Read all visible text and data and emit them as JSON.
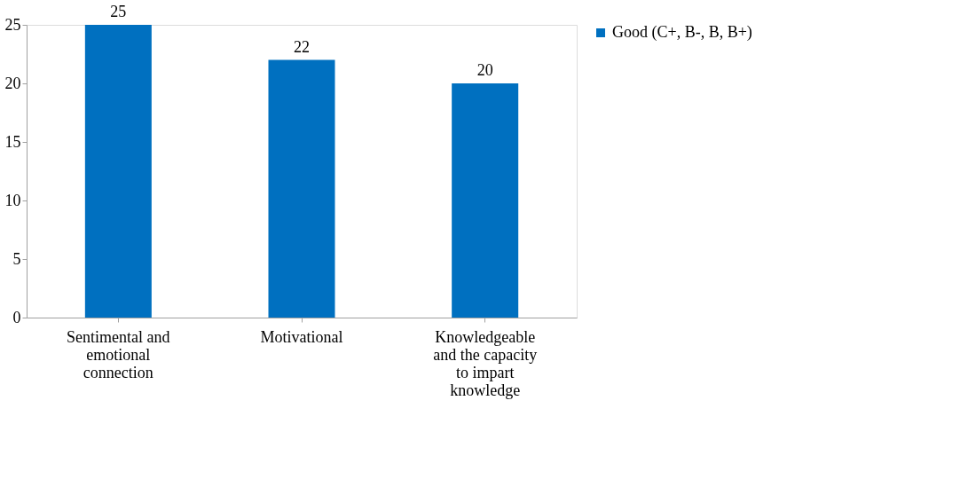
{
  "chart_data": {
    "type": "bar",
    "categories": [
      "Sentimental and emotional connection",
      "Motivational",
      "Knowledgeable and the capacity to impart knowledge"
    ],
    "series": [
      {
        "name": "Good (C+, B-, B, B+)",
        "color": "#0070c0",
        "values": [
          25,
          22,
          20
        ]
      }
    ],
    "ylim": [
      0,
      25
    ],
    "yticks": [
      0,
      5,
      10,
      15,
      20,
      25
    ],
    "grid": false,
    "legend": "right",
    "data_labels": true
  }
}
